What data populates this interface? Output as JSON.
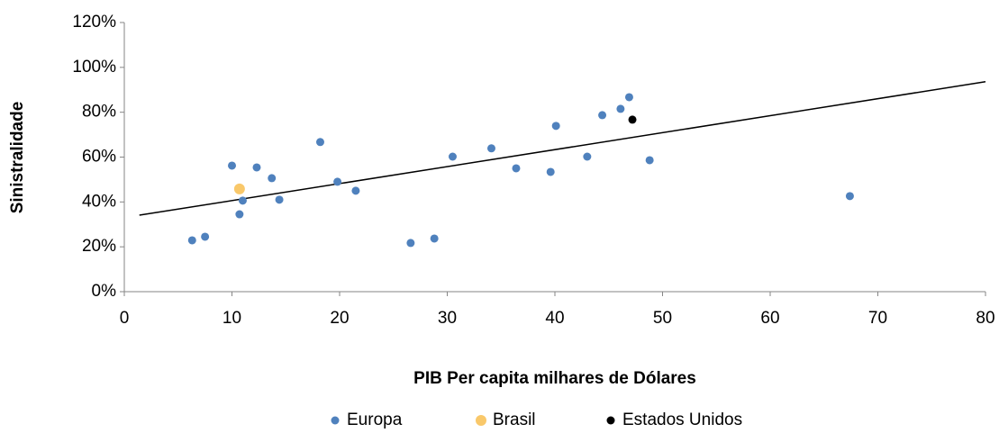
{
  "chart_data": {
    "type": "scatter",
    "x_label": "PIB Per capita milhares de Dólares",
    "y_label": "Sinistralidade",
    "xlim": [
      0,
      80
    ],
    "xticks": [
      0,
      10,
      20,
      30,
      40,
      50,
      60,
      70,
      80
    ],
    "ylim": [
      0,
      120
    ],
    "yticks": [
      {
        "value": 0,
        "label": "0%"
      },
      {
        "value": 20,
        "label": "20%"
      },
      {
        "value": 40,
        "label": "40%"
      },
      {
        "value": 60,
        "label": "60%"
      },
      {
        "value": 80,
        "label": "80%"
      },
      {
        "value": 100,
        "label": "100%"
      },
      {
        "value": 120,
        "label": "120%"
      }
    ],
    "grid": false,
    "legend": "bottom",
    "series": [
      {
        "name": "Europa",
        "color": "#4f81bd",
        "x": [
          6.3,
          7.5,
          10.0,
          10.7,
          11.0,
          12.3,
          13.7,
          14.4,
          18.2,
          19.8,
          21.5,
          26.6,
          28.8,
          30.5,
          34.1,
          36.4,
          39.6,
          40.1,
          43.0,
          44.4,
          46.1,
          46.9,
          48.8,
          67.4
        ],
        "values": [
          22.9,
          24.5,
          56.2,
          34.5,
          40.6,
          55.4,
          50.6,
          41.0,
          66.7,
          49.0,
          45.0,
          21.7,
          23.7,
          60.2,
          63.9,
          55.0,
          53.4,
          73.9,
          60.2,
          78.7,
          81.5,
          86.7,
          58.6,
          42.6
        ]
      },
      {
        "name": "Brasil",
        "color": "#f9c86a",
        "x": [
          10.7
        ],
        "values": [
          45.8
        ]
      },
      {
        "name": "Estados Unidos",
        "color": "#000000",
        "x": [
          47.2
        ],
        "values": [
          76.7
        ]
      }
    ],
    "trendline": {
      "color": "#000000",
      "x": [
        1.4,
        80
      ],
      "y": [
        34.1,
        93.6
      ]
    }
  }
}
